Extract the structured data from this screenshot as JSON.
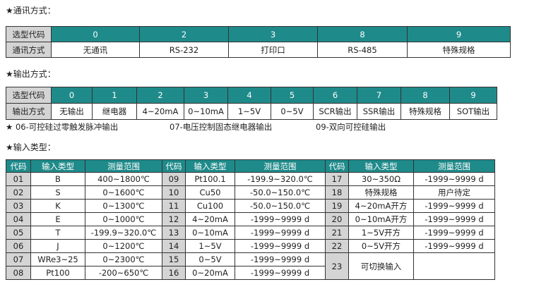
{
  "comm": {
    "title": "★通讯方式：",
    "rows": [
      [
        "选型代码",
        "0",
        "2",
        "3",
        "8",
        "9"
      ],
      [
        "通讯方式",
        "无通讯",
        "RS-232",
        "打印口",
        "RS-485",
        "特殊规格"
      ]
    ]
  },
  "output": {
    "title": "★输出方式：",
    "rows": [
      [
        "选型代码",
        "0",
        "1",
        "2",
        "3",
        "4",
        "5",
        "6",
        "7",
        "8",
        "9"
      ],
      [
        "输出方式",
        "无输出",
        "继电器",
        "4~20mA",
        "0~10mA",
        "1~5V",
        "0~5V",
        "SCR输出",
        "SSR输出",
        "特殊规格",
        "SOT输出"
      ]
    ],
    "notes": [
      "★  06-可控硅过零触发脉冲输出",
      "07-电压控制固态继电器输出",
      "09-双向可控硅输出"
    ]
  },
  "input": {
    "title": "★输入类型：",
    "header": [
      "代码",
      "输入类型",
      "测量范围",
      "代码",
      "输入类型",
      "测量范围",
      "代码",
      "输入类型",
      "测量范围"
    ],
    "rows": [
      [
        "01",
        "B",
        "400~1800℃",
        "09",
        "Pt100.1",
        "-199.9~320.0℃",
        "17",
        "30~350Ω",
        "-1999~9999 d"
      ],
      [
        "02",
        "S",
        "0~1600℃",
        "10",
        "Cu50",
        "-50.0~150.0℃",
        "18",
        "特殊规格",
        "用户待定"
      ],
      [
        "03",
        "K",
        "0~1300℃",
        "11",
        "Cu100",
        "-50.0~150.0℃",
        "19",
        "4~20mA开方",
        "-1999~9999 d"
      ],
      [
        "04",
        "E",
        "0~1000℃",
        "12",
        "4~20mA",
        "-1999~9999 d",
        "20",
        "0~10mA开方",
        "-1999~9999 d"
      ],
      [
        "05",
        "T",
        "-199.9~320.0℃",
        "13",
        "0~10mA",
        "-1999~9999 d",
        "21",
        "1~5V开方",
        "-1999~9999 d"
      ],
      [
        "06",
        "J",
        "0~1200℃",
        "14",
        "1~5V",
        "-1999~9999 d",
        "22",
        "0~5V开方",
        "-1999~9999 d"
      ],
      [
        "07",
        "WRe3~25",
        "0~2300℃",
        "15",
        "0~5V",
        "-1999~9999 d",
        "23",
        "可切换输入"
      ],
      [
        "08",
        "Pt100",
        "-200~650℃",
        "16",
        "0~20mA",
        "-1999~9999 d"
      ]
    ]
  }
}
